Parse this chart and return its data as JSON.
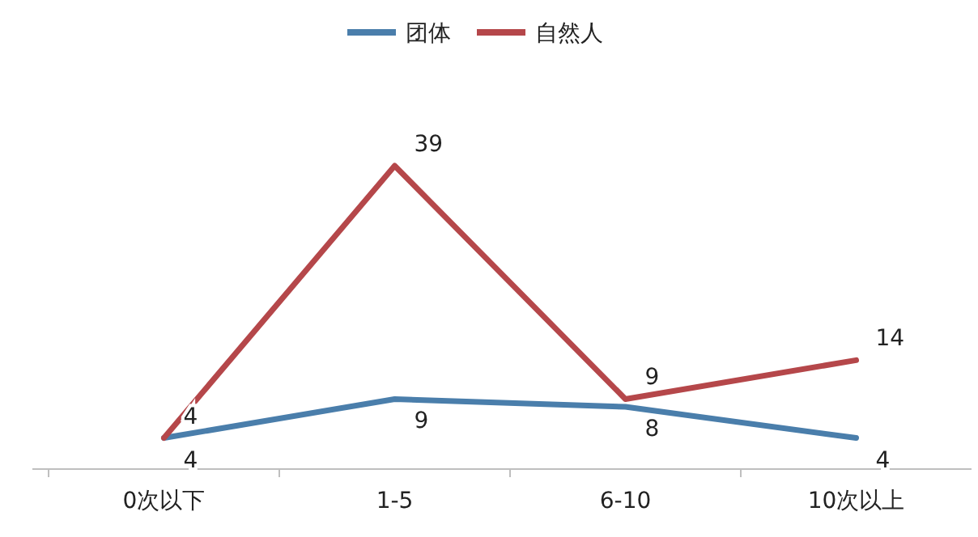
{
  "chart_data": {
    "type": "line",
    "categories": [
      "0次以下",
      "1-5",
      "6-10",
      "10次以上"
    ],
    "series": [
      {
        "name": "团体",
        "color": "#4a7eab",
        "values": [
          4,
          9,
          8,
          4
        ]
      },
      {
        "name": "自然人",
        "color": "#b5474a",
        "values": [
          4,
          39,
          9,
          14
        ]
      }
    ],
    "data_labels": true,
    "legend": "top",
    "marker": "none",
    "line_style": "solid"
  }
}
